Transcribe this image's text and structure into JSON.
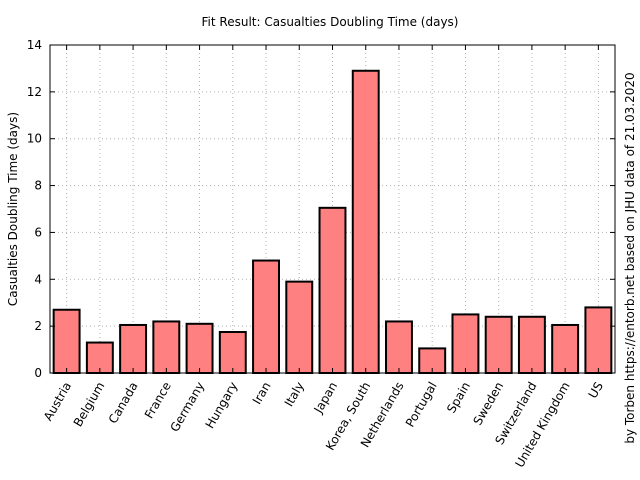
{
  "chart_data": {
    "type": "bar",
    "title": "Fit Result: Casualties Doubling Time (days)",
    "xlabel": "",
    "ylabel": "Casualties Doubling Time (days)",
    "ylim": [
      0,
      14
    ],
    "yticks": [
      0,
      2,
      4,
      6,
      8,
      10,
      12,
      14
    ],
    "grid": true,
    "categories": [
      "Austria",
      "Belgium",
      "Canada",
      "France",
      "Germany",
      "Hungary",
      "Iran",
      "Italy",
      "Japan",
      "Korea, South",
      "Netherlands",
      "Portugal",
      "Spain",
      "Sweden",
      "Switzerland",
      "United Kingdom",
      "US"
    ],
    "values": [
      2.7,
      1.3,
      2.05,
      2.2,
      2.1,
      1.75,
      4.8,
      3.9,
      7.05,
      12.9,
      2.2,
      1.05,
      2.5,
      2.4,
      2.4,
      2.05,
      2.8
    ],
    "bar_color": "#ff8080",
    "bar_edge_color": "#000000",
    "credit": "by Torben https://entorb.net based on JHU data of 21.03.2020"
  }
}
